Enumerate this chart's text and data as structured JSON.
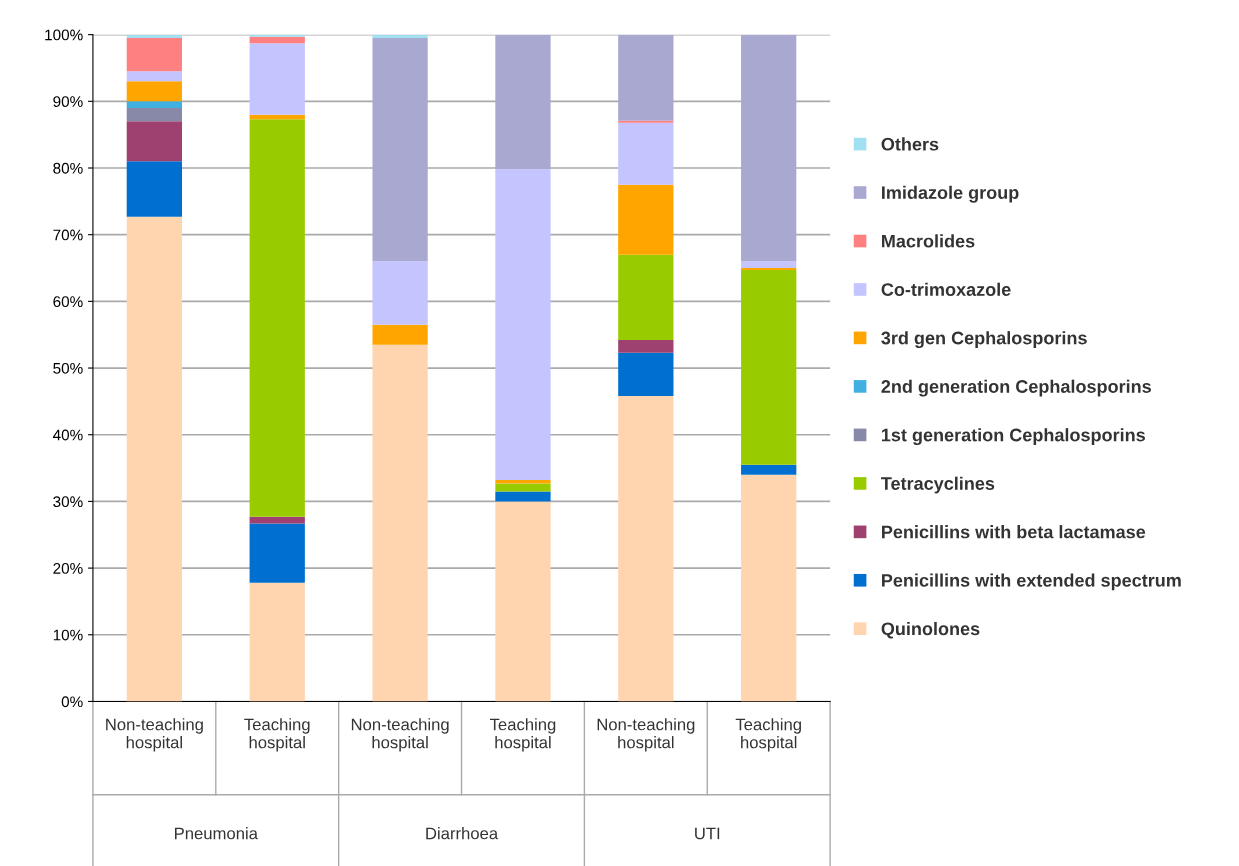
{
  "chart_data": {
    "type": "bar",
    "stacked": true,
    "categories": [
      "Non-teaching\nhospital",
      "Teaching\nhospital",
      "Non-teaching\nhospital",
      "Teaching\nhospital",
      "Non-teaching\nhospital",
      "Teaching\nhospital"
    ],
    "annotations": [
      "Pneumonia",
      "Diarrhoea",
      "UTI"
    ],
    "series": [
      {
        "name": "Quinolones",
        "color": "#ffd5b0",
        "values": [
          72.7,
          17.8,
          53.5,
          30,
          45.8,
          34
        ]
      },
      {
        "name": "Penicillins with extended spectrum",
        "color": "#0070d0",
        "values": [
          8.3,
          8.9,
          0,
          1.5,
          6.5,
          1.5
        ]
      },
      {
        "name": "Penicillins with beta lactamase",
        "color": "#9e4070",
        "values": [
          6,
          1,
          0,
          0,
          1.9,
          0
        ]
      },
      {
        "name": "Tetracyclines",
        "color": "#99cc00",
        "values": [
          0,
          59.6,
          0,
          1.2,
          12.8,
          29.2
        ]
      },
      {
        "name": "1st generation Cephalosporins",
        "color": "#8888a8",
        "values": [
          2,
          0,
          0,
          0,
          0,
          0
        ]
      },
      {
        "name": "2nd generation Cephalosporins",
        "color": "#40b0e0",
        "values": [
          1,
          0,
          0,
          0,
          0,
          0
        ]
      },
      {
        "name": "3rd gen Cephalosporins",
        "color": "#ffa500",
        "values": [
          3,
          0.7,
          3,
          0.5,
          10.5,
          0.3
        ]
      },
      {
        "name": "Co-trimoxazole",
        "color": "#c4c4ff",
        "values": [
          1.5,
          10.7,
          9.5,
          46.6,
          9.3,
          1
        ]
      },
      {
        "name": "Macrolides",
        "color": "#ff8080",
        "values": [
          5,
          1,
          0,
          0,
          0.3,
          0
        ]
      },
      {
        "name": "Imidazole group",
        "color": "#a8a8d0",
        "values": [
          0,
          0,
          33.5,
          20.2,
          12.9,
          34
        ]
      },
      {
        "name": "Others",
        "color": "#a0e0f0",
        "values": [
          0.5,
          0.3,
          0.5,
          0,
          0,
          0
        ]
      }
    ],
    "ylim": [
      0,
      100
    ],
    "yticks": [
      {
        "value": 0,
        "label": "0%"
      },
      {
        "value": 10,
        "label": "10%"
      },
      {
        "value": 20,
        "label": "20%"
      },
      {
        "value": 30,
        "label": "30%"
      },
      {
        "value": 40,
        "label": "40%"
      },
      {
        "value": 50,
        "label": "50%"
      },
      {
        "value": 60,
        "label": "60%"
      },
      {
        "value": 70,
        "label": "70%"
      },
      {
        "value": 80,
        "label": "80%"
      },
      {
        "value": 90,
        "label": "90%"
      },
      {
        "value": 100,
        "label": "100%"
      }
    ],
    "grid": "y",
    "legend": "right"
  }
}
